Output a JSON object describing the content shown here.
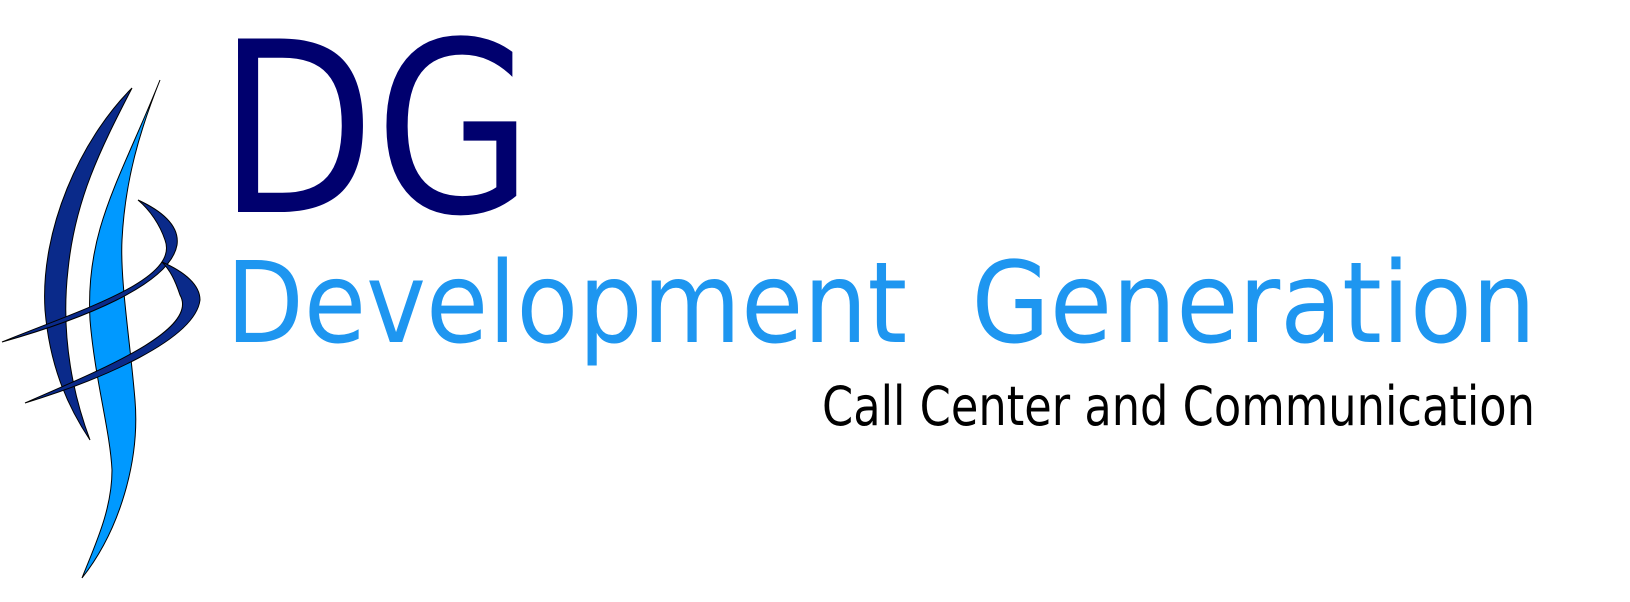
{
  "logo": {
    "initials": "DG",
    "name": "Development  Generation",
    "tagline": "Call Center and Communication"
  }
}
